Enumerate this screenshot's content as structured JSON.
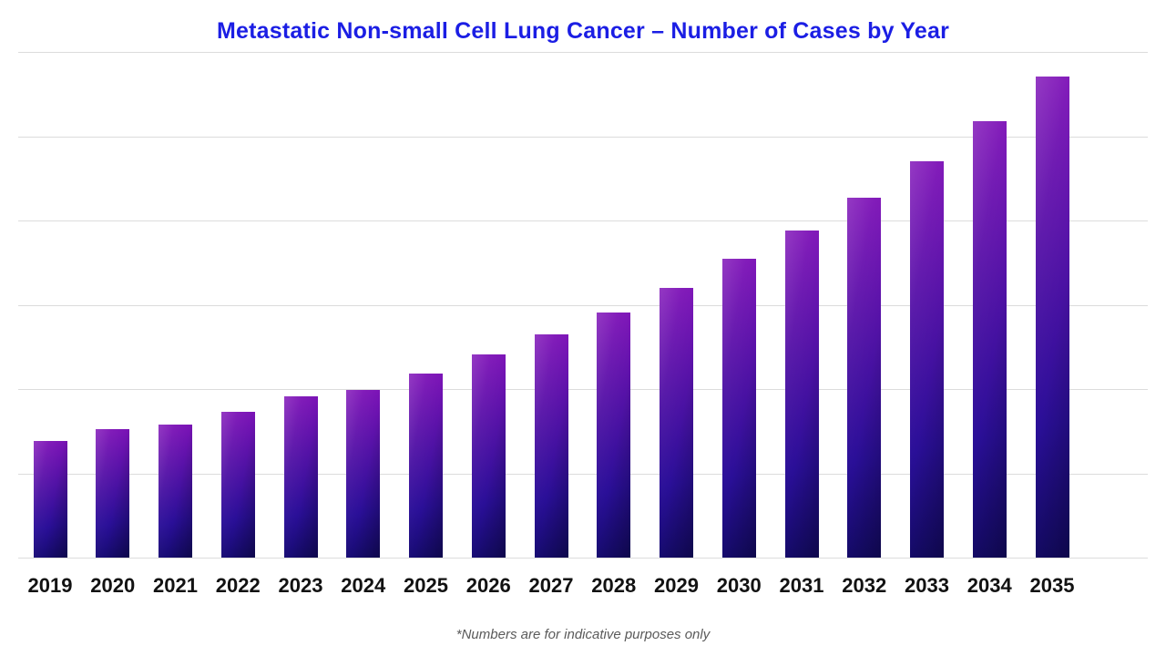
{
  "page": {
    "title": "Metastatic Non-small Cell Lung Cancer – Number of Cases by Year",
    "footnote": "*Numbers are for indicative purposes only"
  },
  "chart_data": {
    "type": "bar",
    "title": "Metastatic Non-small Cell Lung Cancer – Number of Cases by Year",
    "categories": [
      "2019",
      "2020",
      "2021",
      "2022",
      "2023",
      "2024",
      "2025",
      "2026",
      "2027",
      "2028",
      "2029",
      "2030",
      "2031",
      "2032",
      "2033",
      "2034",
      "2035"
    ],
    "values": [
      1.38,
      1.52,
      1.58,
      1.73,
      1.91,
      1.99,
      2.18,
      2.41,
      2.65,
      2.91,
      3.2,
      3.55,
      3.88,
      4.27,
      4.7,
      5.18,
      5.71
    ],
    "value_note": "y-axis has no tick labels; values estimated in gridline units (1 unit = one horizontal gridline interval)",
    "xlabel": "",
    "ylabel": "",
    "ylim": [
      0,
      6
    ],
    "grid": true,
    "gridline_count": 7,
    "legend": "none",
    "annotations": [
      "*Numbers are for indicative purposes only"
    ],
    "colors": {
      "title": "#1b1ee4",
      "gridline": "#dcdcdc",
      "bar_gradient_top": "#8013b8",
      "bar_gradient_mid1": "#5212a6",
      "bar_gradient_mid2": "#2a0f98",
      "bar_gradient_bottom": "#150b6e",
      "x_label": "#121212",
      "footnote": "#5a5a5a",
      "background": "#ffffff"
    }
  }
}
